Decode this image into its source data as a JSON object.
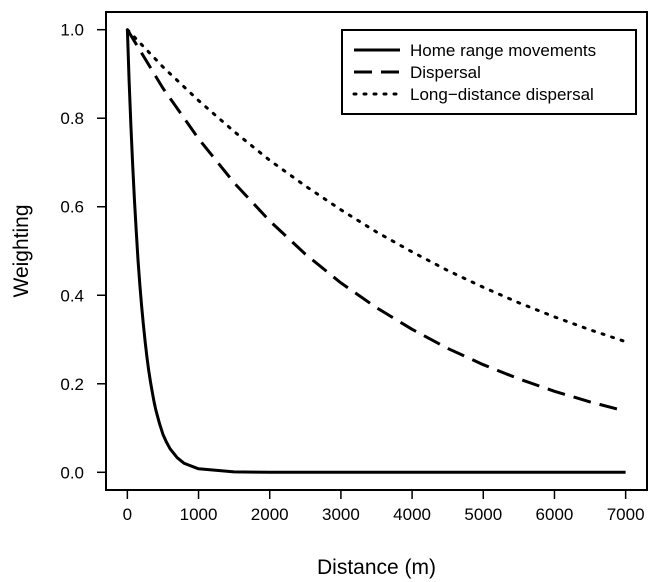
{
  "chart_data": {
    "type": "line",
    "title": "",
    "xlabel": "Distance (m)",
    "ylabel": "Weighting",
    "xlim": [
      -300,
      7300
    ],
    "ylim": [
      -0.04,
      1.04
    ],
    "x_ticks": [
      0,
      1000,
      2000,
      3000,
      4000,
      5000,
      6000,
      7000
    ],
    "x_tick_labels": [
      "0",
      "1000",
      "2000",
      "3000",
      "4000",
      "5000",
      "6000",
      "7000"
    ],
    "y_ticks": [
      0.0,
      0.2,
      0.4,
      0.6,
      0.8,
      1.0
    ],
    "y_tick_labels": [
      "0.0",
      "0.2",
      "0.4",
      "0.6",
      "0.8",
      "1.0"
    ],
    "grid": false,
    "legend_position": "top-right",
    "series": [
      {
        "name": "Home range movements",
        "line_style": "solid",
        "color": "#000000",
        "x": [
          0,
          25,
          50,
          75,
          100,
          125,
          150,
          175,
          200,
          225,
          250,
          275,
          300,
          325,
          350,
          375,
          400,
          450,
          500,
          550,
          600,
          700,
          800,
          1000,
          1500,
          2000,
          3000,
          4000,
          5000,
          6000,
          7000
        ],
        "y": [
          1.0,
          0.885,
          0.783,
          0.693,
          0.613,
          0.543,
          0.48,
          0.425,
          0.376,
          0.333,
          0.294,
          0.261,
          0.23,
          0.204,
          0.181,
          0.16,
          0.141,
          0.111,
          0.086,
          0.068,
          0.053,
          0.033,
          0.02,
          0.008,
          0.001,
          0.0,
          0.0,
          0.0,
          0.0,
          0.0,
          0.0
        ]
      },
      {
        "name": "Dispersal",
        "line_style": "dashed",
        "color": "#000000",
        "x": [
          0,
          500,
          1000,
          1500,
          2000,
          2500,
          3000,
          3500,
          4000,
          4500,
          5000,
          5500,
          6000,
          6500,
          7000
        ],
        "y": [
          1.0,
          0.868,
          0.754,
          0.654,
          0.568,
          0.493,
          0.428,
          0.372,
          0.323,
          0.28,
          0.243,
          0.211,
          0.183,
          0.159,
          0.138
        ]
      },
      {
        "name": "Long−distance dispersal",
        "line_style": "dotted",
        "color": "#000000",
        "x": [
          0,
          500,
          1000,
          1500,
          2000,
          2500,
          3000,
          3500,
          4000,
          4500,
          5000,
          5500,
          6000,
          6500,
          7000
        ],
        "y": [
          1.0,
          0.916,
          0.84,
          0.77,
          0.705,
          0.647,
          0.593,
          0.543,
          0.498,
          0.456,
          0.418,
          0.383,
          0.351,
          0.322,
          0.295
        ]
      }
    ]
  }
}
